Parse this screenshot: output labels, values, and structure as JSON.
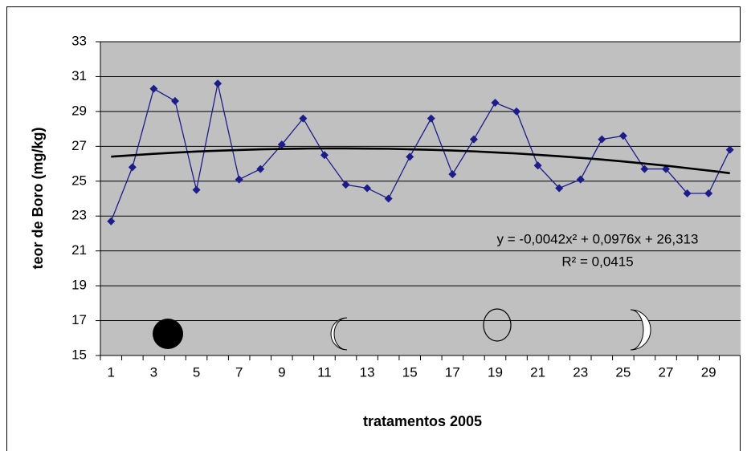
{
  "chart_data": {
    "type": "line",
    "x_label": "tratamentos 2005",
    "y_label": "teor de Boro (mg/kg)",
    "categories": [
      1,
      null,
      3,
      null,
      5,
      null,
      7,
      null,
      9,
      null,
      11,
      null,
      13,
      null,
      15,
      null,
      17,
      null,
      19,
      null,
      21,
      null,
      23,
      null,
      25,
      null,
      27,
      null,
      29,
      null
    ],
    "series": [
      {
        "color": "#1c1c8a",
        "marker": "diamond",
        "values": [
          22.7,
          25.8,
          30.3,
          29.6,
          24.5,
          30.6,
          25.1,
          25.7,
          27.1,
          28.6,
          26.5,
          24.8,
          24.6,
          24.0,
          26.4,
          28.6,
          25.4,
          27.4,
          29.5,
          29.0,
          25.9,
          24.6,
          25.1,
          27.4,
          27.6,
          25.7,
          25.7,
          24.3,
          24.3,
          26.8
        ]
      },
      {
        "color": "#000000",
        "values": [
          26.41,
          26.49,
          26.57,
          26.64,
          26.7,
          26.75,
          26.79,
          26.83,
          26.85,
          26.87,
          26.88,
          26.88,
          26.87,
          26.86,
          26.83,
          26.8,
          26.76,
          26.71,
          26.65,
          26.59,
          26.51,
          26.43,
          26.34,
          26.24,
          26.13,
          26.01,
          25.89,
          25.75,
          25.61,
          25.46
        ]
      }
    ],
    "annotations": [
      "y = -0,0042x² + 0,0976x + 26,313",
      "R² = 0,0415"
    ],
    "ylim": [
      15,
      33
    ],
    "yticks": [
      15,
      17,
      19,
      21,
      23,
      25,
      27,
      29,
      31,
      33
    ],
    "grid": true,
    "plot_background": "#c0c0c0"
  }
}
